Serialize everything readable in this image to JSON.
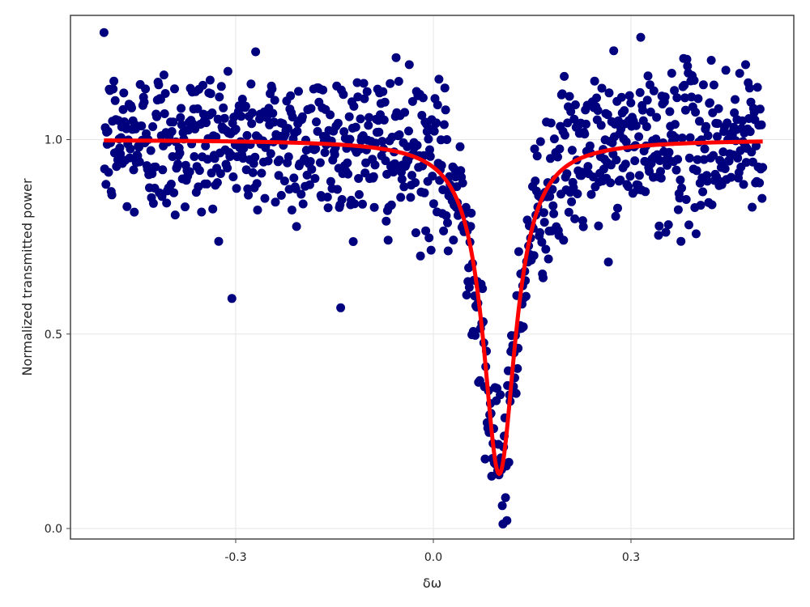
{
  "chart_data": {
    "type": "scatter",
    "title": "",
    "xlabel": "δω",
    "ylabel": "Normalized transmitted power",
    "xlim": [
      -0.5,
      0.5
    ],
    "ylim": [
      0.0,
      1.25
    ],
    "xticks": [
      -0.3,
      0.0,
      0.3
    ],
    "xtick_labels": [
      "-0.3",
      "0.0",
      "0.3"
    ],
    "yticks": [
      0.0,
      0.5,
      1.0
    ],
    "ytick_labels": [
      "0.0",
      "0.5",
      "1.0"
    ],
    "grid": true,
    "series": [
      {
        "kind": "scatter",
        "color": "#00007f",
        "n_points": 1000,
        "x_range": [
          -0.5,
          0.5
        ],
        "noise_std": 0.1,
        "follows": "fit"
      },
      {
        "kind": "line",
        "color": "#ff0000",
        "model": "lorentzian_dip",
        "center": 0.1,
        "half_width": 0.03,
        "baseline": 1.0,
        "min_value": 0.14
      }
    ]
  },
  "colors": {
    "scatter": "#00007f",
    "fit": "#ff0000",
    "grid": "#e5e5e5",
    "frame": "#444444"
  }
}
